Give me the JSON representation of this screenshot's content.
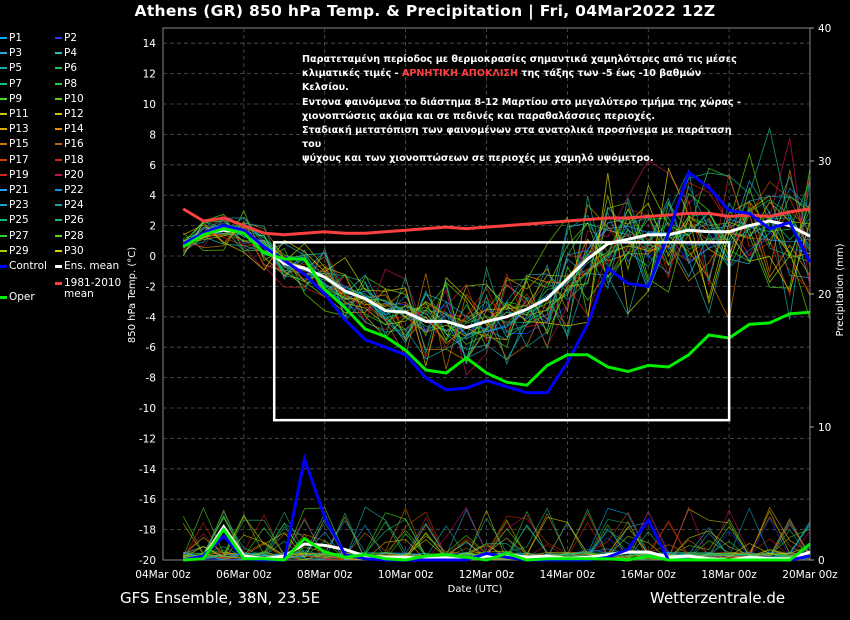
{
  "title": "Athens  (GR)  850 hPa Temp. & Precipitation | Fri, 04Mar2022 12Z",
  "footer": {
    "left": "GFS Ensemble, 38N, 23.5E",
    "right": "Wetterzentrale.de"
  },
  "note": {
    "line1": "Παρατεταμένη περίοδος με θερμοκρασίες σημαντικά χαμηλότερες από τις μέσες",
    "line2_a": "κλιματικές τιμές - ",
    "line2_warn": "ΑΡΝΗΤΙΚΗ ΑΠΟΚΛΙΣΗ",
    "line2_b": " της τάξης των -5 έως -10 βαθμών Κελσίου.",
    "line3": "Εντονα φαινόμενα το διάστημα 8-12 Μαρτίου στο μεγαλύτερο τμήμα της χώρας -",
    "line4": "χιονοπτώσεις ακόμα και σε πεδινές και παραθαλάσσιες περιοχές.",
    "line5": "Σταδιακή μετατόπιση των φαινομένων στα ανατολικά προσήνεμα με παράταση του",
    "line6": "ψύχους και των χιονοπτώσεων σε περιοχές με χαμηλό υψόμετρο."
  },
  "legend": [
    {
      "label": "P1",
      "color": "#00aaff"
    },
    {
      "label": "P2",
      "color": "#1f3cff"
    },
    {
      "label": "P3",
      "color": "#2aa8d8"
    },
    {
      "label": "P4",
      "color": "#20c0c0"
    },
    {
      "label": "P5",
      "color": "#18b0b0"
    },
    {
      "label": "P6",
      "color": "#20c060"
    },
    {
      "label": "P7",
      "color": "#10c080"
    },
    {
      "label": "P8",
      "color": "#22cc44"
    },
    {
      "label": "P9",
      "color": "#44dd22"
    },
    {
      "label": "P10",
      "color": "#66cc00"
    },
    {
      "label": "P11",
      "color": "#c8c800"
    },
    {
      "label": "P12",
      "color": "#d0c000"
    },
    {
      "label": "P13",
      "color": "#e0a800"
    },
    {
      "label": "P14",
      "color": "#e09000"
    },
    {
      "label": "P15",
      "color": "#d07800"
    },
    {
      "label": "P16",
      "color": "#c86400"
    },
    {
      "label": "P17",
      "color": "#cc4400"
    },
    {
      "label": "P18",
      "color": "#cc2a00"
    },
    {
      "label": "P19",
      "color": "#d02020"
    },
    {
      "label": "P20",
      "color": "#c81060"
    },
    {
      "label": "P21",
      "color": "#2aa0ff"
    },
    {
      "label": "P22",
      "color": "#1890e0"
    },
    {
      "label": "P23",
      "color": "#1aa0c0"
    },
    {
      "label": "P24",
      "color": "#10a8a8"
    },
    {
      "label": "P25",
      "color": "#10b890"
    },
    {
      "label": "P26",
      "color": "#14c070"
    },
    {
      "label": "P27",
      "color": "#30d030"
    },
    {
      "label": "P28",
      "color": "#50d820"
    },
    {
      "label": "P29",
      "color": "#a0d000"
    },
    {
      "label": "P30",
      "color": "#d8d000"
    },
    {
      "label": "Control",
      "color": "#0000ff"
    },
    {
      "label": "Ens. mean",
      "color": "#ffffff"
    },
    {
      "label": "1981-2010",
      "label2": "mean",
      "color": "#ff4040"
    },
    {
      "label": "Oper",
      "color": "#00ee00"
    }
  ],
  "chart_data": {
    "type": "line",
    "title": "Athens  (GR)  850 hPa Temp. & Precipitation | Fri, 04Mar2022 12Z",
    "xlabel": "Date (UTC)",
    "ylabel": "850 hPa Temp. (°C)",
    "y2label": "Precipitation (mm)",
    "x_ticks": [
      "04Mar 00z",
      "06Mar 00z",
      "08Mar 00z",
      "10Mar 00z",
      "12Mar 00z",
      "14Mar 00z",
      "16Mar 00z",
      "18Mar 00z",
      "20Mar 00z"
    ],
    "x_range_days": [
      0,
      16
    ],
    "ylim": [
      -20,
      15
    ],
    "y_ticks": [
      14,
      12,
      10,
      8,
      6,
      4,
      2,
      0,
      -2,
      -4,
      -6,
      -8,
      -10,
      -12,
      -14,
      -16,
      -18,
      -20
    ],
    "y2lim": [
      0,
      40
    ],
    "y2_ticks": [
      0,
      10,
      20,
      30,
      40
    ],
    "grid": true,
    "highlight_box": {
      "x": [
        2.75,
        14.0
      ],
      "y": [
        -10.8,
        0.9
      ]
    },
    "x_days": [
      0.5,
      1.0,
      1.5,
      2.0,
      2.5,
      3.0,
      3.5,
      4.0,
      4.5,
      5.0,
      5.5,
      6.0,
      6.5,
      7.0,
      7.5,
      8.0,
      8.5,
      9.0,
      9.5,
      10.0,
      10.5,
      11.0,
      11.5,
      12.0,
      12.5,
      13.0,
      13.5,
      14.0,
      14.5,
      15.0,
      15.5,
      16.0
    ],
    "series": [
      {
        "name": "1981-2010 mean",
        "values": [
          3.1,
          2.3,
          2.5,
          2.0,
          1.5,
          1.4,
          1.5,
          1.6,
          1.5,
          1.5,
          1.6,
          1.7,
          1.8,
          1.9,
          1.8,
          1.9,
          2.0,
          2.1,
          2.2,
          2.3,
          2.4,
          2.5,
          2.5,
          2.6,
          2.7,
          2.8,
          2.8,
          2.6,
          2.7,
          2.6,
          2.9,
          3.1
        ]
      },
      {
        "name": "Ens. mean",
        "values": [
          0.8,
          1.5,
          1.7,
          1.6,
          0.6,
          -0.5,
          -0.8,
          -1.4,
          -2.3,
          -2.8,
          -3.6,
          -3.7,
          -4.3,
          -4.3,
          -4.7,
          -4.3,
          -4.0,
          -3.5,
          -2.8,
          -1.5,
          -0.2,
          0.8,
          1.1,
          1.4,
          1.4,
          1.7,
          1.6,
          1.6,
          2.0,
          2.3,
          2.0,
          1.3
        ]
      },
      {
        "name": "Control",
        "values": [
          0.8,
          1.5,
          2.0,
          1.7,
          0.6,
          -0.3,
          -1.2,
          -2.5,
          -4.2,
          -5.5,
          -6.0,
          -6.5,
          -8.0,
          -8.8,
          -8.7,
          -8.2,
          -8.6,
          -9.0,
          -9.0,
          -7.0,
          -4.5,
          -0.8,
          -1.8,
          -2.0,
          1.5,
          5.5,
          4.5,
          3.0,
          2.8,
          1.8,
          2.2,
          -0.4
        ]
      },
      {
        "name": "Oper",
        "values": [
          0.6,
          1.4,
          1.8,
          1.5,
          0.2,
          -0.2,
          -0.2,
          -2.2,
          -3.4,
          -4.8,
          -5.3,
          -6.2,
          -7.5,
          -7.7,
          -6.7,
          -7.7,
          -8.3,
          -8.5,
          -7.2,
          -6.5,
          -6.5,
          -7.3,
          -7.6,
          -7.2,
          -7.3,
          -6.5,
          -5.2,
          -5.4,
          -4.5,
          -4.4,
          -3.8,
          -3.7
        ]
      }
    ],
    "precip_series": [
      {
        "name": "Ens. mean",
        "values": [
          0.0,
          0.2,
          2.5,
          0.3,
          0.1,
          0.3,
          1.2,
          1.1,
          0.8,
          0.3,
          0.2,
          0.2,
          0.1,
          0.2,
          0.1,
          0.3,
          0.4,
          0.2,
          0.3,
          0.1,
          0.2,
          0.4,
          0.6,
          0.6,
          0.2,
          0.3,
          0.1,
          0.0,
          0.2,
          0.1,
          0.1,
          0.6
        ]
      },
      {
        "name": "Control",
        "values": [
          0.0,
          0.3,
          1.8,
          0.1,
          0.0,
          0.0,
          7.6,
          3.2,
          0.4,
          0.1,
          0.0,
          0.0,
          0.0,
          0.0,
          0.0,
          0.5,
          0.2,
          0.0,
          0.0,
          0.0,
          0.0,
          0.2,
          0.8,
          3.0,
          0.0,
          0.0,
          0.0,
          0.0,
          0.0,
          0.0,
          0.0,
          0.3
        ]
      },
      {
        "name": "Oper",
        "values": [
          0.0,
          0.1,
          2.3,
          0.1,
          0.1,
          0.0,
          1.6,
          0.6,
          0.2,
          0.4,
          0.1,
          0.0,
          0.3,
          0.4,
          0.2,
          0.0,
          0.5,
          0.0,
          0.1,
          0.1,
          0.1,
          0.1,
          0.0,
          0.3,
          0.0,
          0.0,
          0.0,
          0.0,
          0.0,
          0.0,
          0.0,
          1.2
        ]
      }
    ]
  }
}
